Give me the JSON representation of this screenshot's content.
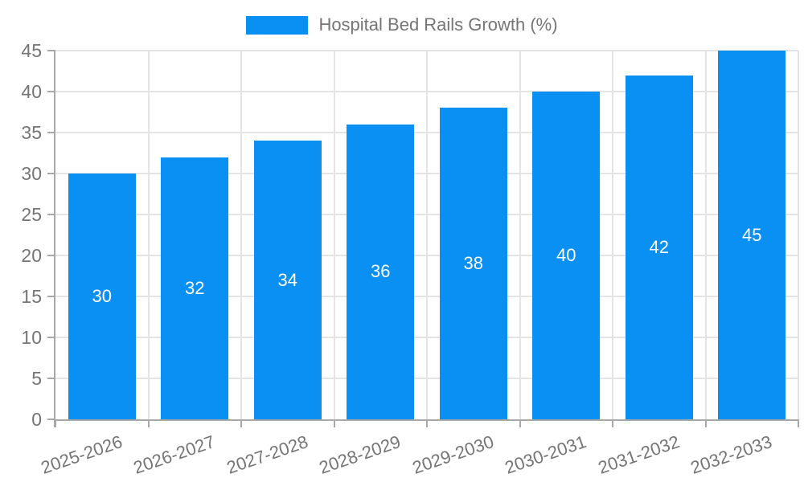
{
  "legend": {
    "label": "Hospital Bed Rails Growth (%)",
    "swatch_color": "#0a8ff2"
  },
  "chart_data": {
    "type": "bar",
    "title": "Hospital Bed Rails Growth (%)",
    "categories": [
      "2025-2026",
      "2026-2027",
      "2027-2028",
      "2028-2029",
      "2029-2030",
      "2030-2031",
      "2031-2032",
      "2032-2033"
    ],
    "series": [
      {
        "name": "Hospital Bed Rails Growth (%)",
        "values": [
          30,
          32,
          34,
          36,
          38,
          40,
          42,
          45
        ]
      }
    ],
    "data_labels": [
      "30",
      "32",
      "34",
      "36",
      "38",
      "40",
      "42",
      "45"
    ],
    "xlabel": "",
    "ylabel": "",
    "ylim": [
      0,
      45
    ],
    "yticks": [
      0,
      5,
      10,
      15,
      20,
      25,
      30,
      35,
      40,
      45
    ],
    "grid": true,
    "legend_position": "top",
    "colors": {
      "bar": "#0a8ff2",
      "bar_label": "#ffffff",
      "axis_text": "#757575",
      "grid_line": "#e4e4e4",
      "axis_line": "#a8a8a8",
      "background": "#ffffff"
    }
  }
}
